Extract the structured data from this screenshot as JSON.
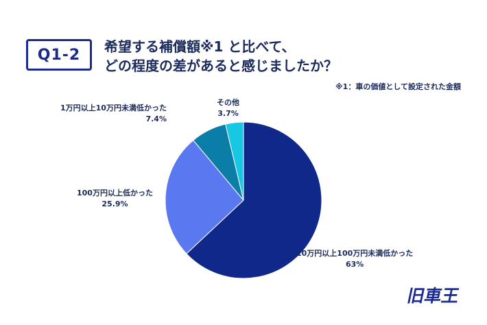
{
  "question_tag": "Q1-2",
  "title_line1": "希望する補償額※1 と比べて、",
  "title_line2": "どの程度の差があると感じましたか？",
  "footnote": "※1：車の価値として設定された金額",
  "logo_text": "旧車王",
  "colors": {
    "dark_navy": "#10288a",
    "medium_blue": "#5a78f0",
    "teal": "#0b7ea8",
    "cyan": "#17c7e3"
  },
  "chart_data": {
    "type": "pie",
    "title": "",
    "slices": [
      {
        "label": "10万円以上100万円未満低かった",
        "value": 63,
        "display": "63%",
        "color": "#10288a"
      },
      {
        "label": "100万円以上低かった",
        "value": 25.9,
        "display": "25.9%",
        "color": "#5a78f0"
      },
      {
        "label": "1万円以上10万円未満低かった",
        "value": 7.4,
        "display": "7.4%",
        "color": "#0b7ea8"
      },
      {
        "label": "その他",
        "value": 3.7,
        "display": "3.7%",
        "color": "#17c7e3"
      }
    ]
  }
}
